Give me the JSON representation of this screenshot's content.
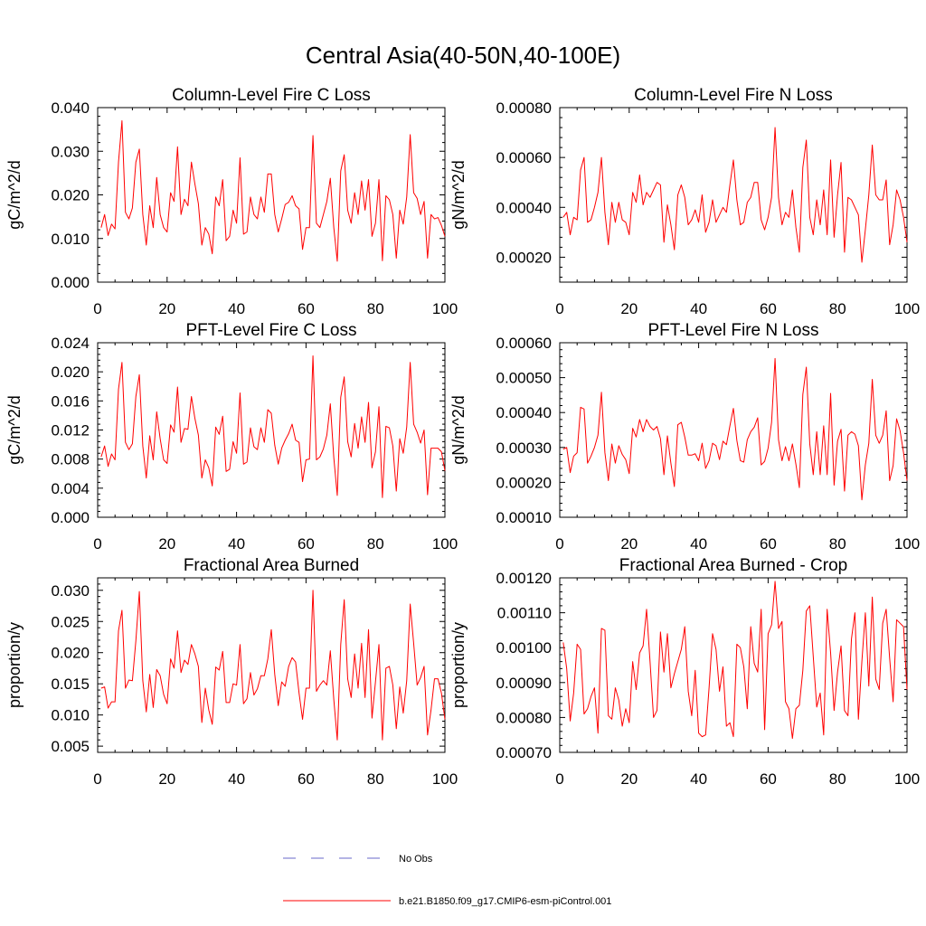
{
  "title": "Central Asia(40-50N,40-100E)",
  "colors": {
    "model": "#ff0000",
    "obs": "#6a6ac8",
    "axis": "#000000"
  },
  "legend": [
    {
      "label": "No Obs",
      "style": "dashed",
      "color": "#6a6ac8"
    },
    {
      "label": "b.e21.B1850.f09_g17.CMIP6-esm-piControl.001",
      "style": "solid",
      "color": "#ff0000"
    }
  ],
  "chart_data": [
    {
      "type": "line",
      "title": "Column-Level Fire C Loss",
      "ylabel": "gC/m^2/d",
      "xlim": [
        0,
        100
      ],
      "xticks": [
        0,
        20,
        40,
        60,
        80,
        100
      ],
      "ylim": [
        0.0,
        0.04
      ],
      "yticks": [
        "0.000",
        "0.010",
        "0.020",
        "0.030",
        "0.040"
      ],
      "ytick_values": [
        0.0,
        0.01,
        0.02,
        0.03,
        0.04
      ],
      "series": [
        {
          "name": "b.e21.B1850.f09_g17.CMIP6-esm-piControl.001",
          "values": [
            0.0125,
            0.0155,
            0.0107,
            0.0133,
            0.0122,
            0.0275,
            0.037,
            0.016,
            0.0145,
            0.017,
            0.0275,
            0.0305,
            0.0155,
            0.0085,
            0.0175,
            0.0125,
            0.024,
            0.0155,
            0.0125,
            0.0115,
            0.0205,
            0.0185,
            0.031,
            0.0155,
            0.019,
            0.0175,
            0.0275,
            0.0225,
            0.018,
            0.0085,
            0.0125,
            0.011,
            0.0065,
            0.0195,
            0.0175,
            0.0235,
            0.0095,
            0.0105,
            0.0165,
            0.0135,
            0.0285,
            0.011,
            0.0115,
            0.0195,
            0.0155,
            0.0145,
            0.0195,
            0.016,
            0.0248,
            0.0248,
            0.0155,
            0.0115,
            0.0145,
            0.0178,
            0.0183,
            0.0198,
            0.0175,
            0.0168,
            0.0075,
            0.0125,
            0.0125,
            0.0336,
            0.0135,
            0.0125,
            0.0155,
            0.0185,
            0.0238,
            0.0125,
            0.0048,
            0.0255,
            0.0292,
            0.0165,
            0.0135,
            0.0205,
            0.0155,
            0.0232,
            0.0165,
            0.0235,
            0.0105,
            0.0135,
            0.0235,
            0.0049,
            0.0198,
            0.0189,
            0.0155,
            0.0055,
            0.0165,
            0.0133,
            0.0195,
            0.0338,
            0.0205,
            0.0192,
            0.0155,
            0.0185,
            0.0055,
            0.0155,
            0.0145,
            0.0148,
            0.013,
            0.0105
          ]
        }
      ]
    },
    {
      "type": "line",
      "title": "Column-Level Fire N Loss",
      "ylabel": "gN/m^2/d",
      "xlim": [
        0,
        100
      ],
      "xticks": [
        0,
        20,
        40,
        60,
        80,
        100
      ],
      "ylim": [
        0.0001,
        0.0008
      ],
      "yticks": [
        "0.00020",
        "0.00040",
        "0.00060",
        "0.00080"
      ],
      "ytick_values": [
        0.0002,
        0.0004,
        0.0006,
        0.0008
      ],
      "series": [
        {
          "name": "b.e21.B1850.f09_g17.CMIP6-esm-piControl.001",
          "values": [
            0.00036,
            0.00038,
            0.00029,
            0.00036,
            0.00035,
            0.00055,
            0.0006,
            0.00034,
            0.00035,
            0.0004,
            0.00046,
            0.0006,
            0.00038,
            0.00025,
            0.00042,
            0.00034,
            0.00042,
            0.00035,
            0.00034,
            0.00029,
            0.00046,
            0.00042,
            0.00053,
            0.00041,
            0.00046,
            0.00044,
            0.00047,
            0.0005,
            0.00049,
            0.00026,
            0.00041,
            0.00033,
            0.00023,
            0.00045,
            0.00049,
            0.00044,
            0.00033,
            0.00035,
            0.00039,
            0.00034,
            0.00045,
            0.0003,
            0.00034,
            0.00043,
            0.00034,
            0.00037,
            0.0004,
            0.00038,
            0.00049,
            0.00059,
            0.00043,
            0.00033,
            0.00034,
            0.00042,
            0.00044,
            0.0005,
            0.0005,
            0.00035,
            0.00031,
            0.00036,
            0.00044,
            0.00072,
            0.00044,
            0.00033,
            0.00038,
            0.00036,
            0.00047,
            0.00032,
            0.00022,
            0.00056,
            0.00067,
            0.00036,
            0.00029,
            0.00043,
            0.00033,
            0.00047,
            0.00029,
            0.00059,
            0.00028,
            0.00045,
            0.00058,
            0.00022,
            0.00044,
            0.00043,
            0.0004,
            0.00037,
            0.00018,
            0.00031,
            0.00045,
            0.00065,
            0.00045,
            0.00043,
            0.00043,
            0.00051,
            0.00025,
            0.00033,
            0.00047,
            0.00043,
            0.00036,
            0.00026
          ]
        }
      ]
    },
    {
      "type": "line",
      "title": "PFT-Level Fire C Loss",
      "ylabel": "gC/m^2/d",
      "xlim": [
        0,
        100
      ],
      "xticks": [
        0,
        20,
        40,
        60,
        80,
        100
      ],
      "ylim": [
        0.0,
        0.024
      ],
      "yticks": [
        "0.000",
        "0.004",
        "0.008",
        "0.012",
        "0.016",
        "0.020",
        "0.024"
      ],
      "ytick_values": [
        0.0,
        0.004,
        0.008,
        0.012,
        0.016,
        0.02,
        0.024
      ],
      "series": [
        {
          "name": "b.e21.B1850.f09_g17.CMIP6-esm-piControl.001",
          "values": [
            0.0083,
            0.0098,
            0.007,
            0.0087,
            0.0079,
            0.0176,
            0.0213,
            0.0103,
            0.0093,
            0.0101,
            0.0166,
            0.0196,
            0.0098,
            0.0054,
            0.0112,
            0.0079,
            0.0145,
            0.0108,
            0.0079,
            0.0074,
            0.0127,
            0.0117,
            0.0179,
            0.0103,
            0.0122,
            0.0121,
            0.0166,
            0.0136,
            0.0113,
            0.0054,
            0.0079,
            0.0068,
            0.0043,
            0.0124,
            0.0114,
            0.0139,
            0.0063,
            0.0066,
            0.0104,
            0.0088,
            0.0171,
            0.0073,
            0.0076,
            0.0123,
            0.0097,
            0.0093,
            0.0123,
            0.0103,
            0.0148,
            0.0143,
            0.0099,
            0.0073,
            0.0095,
            0.0106,
            0.0115,
            0.0128,
            0.0106,
            0.0103,
            0.0049,
            0.0079,
            0.008,
            0.0222,
            0.0079,
            0.0083,
            0.0094,
            0.0113,
            0.0156,
            0.0082,
            0.003,
            0.0165,
            0.0193,
            0.0104,
            0.0083,
            0.0129,
            0.0095,
            0.0138,
            0.0103,
            0.0158,
            0.0068,
            0.009,
            0.0152,
            0.0027,
            0.0125,
            0.0123,
            0.0098,
            0.0036,
            0.0108,
            0.0088,
            0.0124,
            0.0213,
            0.0128,
            0.0117,
            0.0102,
            0.012,
            0.0031,
            0.0095,
            0.0095,
            0.0095,
            0.009,
            0.0064
          ]
        }
      ]
    },
    {
      "type": "line",
      "title": "PFT-Level Fire N Loss",
      "ylabel": "gN/m^2/d",
      "xlim": [
        0,
        100
      ],
      "xticks": [
        0,
        20,
        40,
        60,
        80,
        100
      ],
      "ylim": [
        0.0001,
        0.0006
      ],
      "yticks": [
        "0.00010",
        "0.00020",
        "0.00030",
        "0.00040",
        "0.00050",
        "0.00060"
      ],
      "ytick_values": [
        0.0001,
        0.0002,
        0.0003,
        0.0004,
        0.0005,
        0.0006
      ],
      "series": [
        {
          "name": "b.e21.B1850.f09_g17.CMIP6-esm-piControl.001",
          "values": [
            0.000295,
            0.0003,
            0.000228,
            0.000275,
            0.000285,
            0.000415,
            0.00041,
            0.000255,
            0.000275,
            0.0003,
            0.000335,
            0.000458,
            0.000285,
            0.000205,
            0.00031,
            0.000255,
            0.000305,
            0.00028,
            0.000265,
            0.000225,
            0.000355,
            0.00033,
            0.00038,
            0.000345,
            0.00038,
            0.00036,
            0.00035,
            0.00036,
            0.000325,
            0.000222,
            0.000333,
            0.000255,
            0.000188,
            0.000365,
            0.000372,
            0.00033,
            0.000278,
            0.000278,
            0.000282,
            0.000262,
            0.000312,
            0.00024,
            0.000262,
            0.000312,
            0.000305,
            0.000265,
            0.000318,
            0.000308,
            0.000362,
            0.000412,
            0.00032,
            0.000262,
            0.000258,
            0.000322,
            0.000345,
            0.000358,
            0.000385,
            0.00025,
            0.00026,
            0.000298,
            0.000372,
            0.000555,
            0.000322,
            0.000262,
            0.000302,
            0.000262,
            0.00031,
            0.000252,
            0.000185,
            0.000452,
            0.00053,
            0.00031,
            0.000222,
            0.000345,
            0.000222,
            0.000362,
            0.000222,
            0.000455,
            0.000192,
            0.000318,
            0.000352,
            0.000175,
            0.000335,
            0.000345,
            0.000338,
            0.000305,
            0.00015,
            0.00025,
            0.000312,
            0.000495,
            0.000335,
            0.000312,
            0.000335,
            0.000405,
            0.000205,
            0.000248,
            0.000382,
            0.000348,
            0.000285,
            0.000205
          ]
        }
      ]
    },
    {
      "type": "line",
      "title": "Fractional Area Burned",
      "ylabel": "proportion/y",
      "xlim": [
        0,
        100
      ],
      "xticks": [
        0,
        20,
        40,
        60,
        80,
        100
      ],
      "ylim": [
        0.004,
        0.032
      ],
      "yticks": [
        "0.005",
        "0.010",
        "0.015",
        "0.020",
        "0.025",
        "0.030"
      ],
      "ytick_values": [
        0.005,
        0.01,
        0.015,
        0.02,
        0.025,
        0.03
      ],
      "series": [
        {
          "name": "b.e21.B1850.f09_g17.CMIP6-esm-piControl.001",
          "values": [
            0.0143,
            0.0145,
            0.0111,
            0.0121,
            0.0121,
            0.0235,
            0.0268,
            0.0143,
            0.0156,
            0.0155,
            0.0219,
            0.0298,
            0.0155,
            0.0105,
            0.0165,
            0.0112,
            0.0173,
            0.0163,
            0.0133,
            0.0118,
            0.019,
            0.0175,
            0.0235,
            0.0168,
            0.0188,
            0.0181,
            0.0213,
            0.0198,
            0.0178,
            0.0088,
            0.0143,
            0.0108,
            0.0085,
            0.0177,
            0.0172,
            0.0202,
            0.012,
            0.012,
            0.015,
            0.0148,
            0.0213,
            0.0118,
            0.0126,
            0.0168,
            0.0132,
            0.0142,
            0.0163,
            0.0163,
            0.019,
            0.0237,
            0.0165,
            0.0115,
            0.0153,
            0.0146,
            0.0178,
            0.0192,
            0.0185,
            0.0135,
            0.0093,
            0.0143,
            0.0143,
            0.03,
            0.0138,
            0.0148,
            0.0155,
            0.0148,
            0.0203,
            0.0125,
            0.006,
            0.0213,
            0.0285,
            0.0158,
            0.0128,
            0.0198,
            0.0143,
            0.0215,
            0.0128,
            0.0237,
            0.0095,
            0.0153,
            0.0213,
            0.006,
            0.0175,
            0.0178,
            0.0148,
            0.0078,
            0.0145,
            0.0103,
            0.0155,
            0.0278,
            0.0215,
            0.0148,
            0.016,
            0.0178,
            0.0068,
            0.0108,
            0.0158,
            0.0158,
            0.0135,
            0.0093
          ]
        }
      ]
    },
    {
      "type": "line",
      "title": "Fractional Area Burned - Crop",
      "ylabel": "proportion/y",
      "xlim": [
        0,
        100
      ],
      "xticks": [
        0,
        20,
        40,
        60,
        80,
        100
      ],
      "ylim": [
        0.0007,
        0.0012
      ],
      "yticks": [
        "0.00070",
        "0.00080",
        "0.00090",
        "0.00100",
        "0.00110",
        "0.00120"
      ],
      "ytick_values": [
        0.0007,
        0.0008,
        0.0009,
        0.001,
        0.0011,
        0.0012
      ],
      "series": [
        {
          "name": "b.e21.B1850.f09_g17.CMIP6-esm-piControl.001",
          "values": [
            0.001015,
            0.00094,
            0.00079,
            0.00087,
            0.00101,
            0.000995,
            0.00081,
            0.000825,
            0.00086,
            0.000885,
            0.000755,
            0.001055,
            0.00105,
            0.000805,
            0.000795,
            0.000885,
            0.00085,
            0.000775,
            0.000825,
            0.000785,
            0.00096,
            0.00088,
            0.000985,
            0.001005,
            0.00111,
            0.00096,
            0.0008,
            0.00082,
            0.001045,
            0.00093,
            0.00104,
            0.000885,
            0.000925,
            0.00096,
            0.000995,
            0.00106,
            0.000875,
            0.000805,
            0.000935,
            0.000755,
            0.000745,
            0.00075,
            0.000885,
            0.00104,
            0.000995,
            0.000875,
            0.000945,
            0.000775,
            0.000785,
            0.000745,
            0.00101,
            0.001,
            0.000945,
            0.000825,
            0.00106,
            0.000955,
            0.00093,
            0.00111,
            0.000765,
            0.00104,
            0.001065,
            0.00119,
            0.001055,
            0.001075,
            0.000845,
            0.000825,
            0.00074,
            0.000825,
            0.000835,
            0.000935,
            0.001105,
            0.00112,
            0.000975,
            0.00083,
            0.00087,
            0.00075,
            0.00111,
            0.000985,
            0.00082,
            0.00093,
            0.001005,
            0.00082,
            0.000805,
            0.001025,
            0.0011,
            0.000795,
            0.00096,
            0.0011,
            0.00089,
            0.001145,
            0.00091,
            0.00088,
            0.00107,
            0.00111,
            0.00097,
            0.000845,
            0.00108,
            0.00107,
            0.00106,
            0.00088
          ]
        }
      ]
    }
  ]
}
